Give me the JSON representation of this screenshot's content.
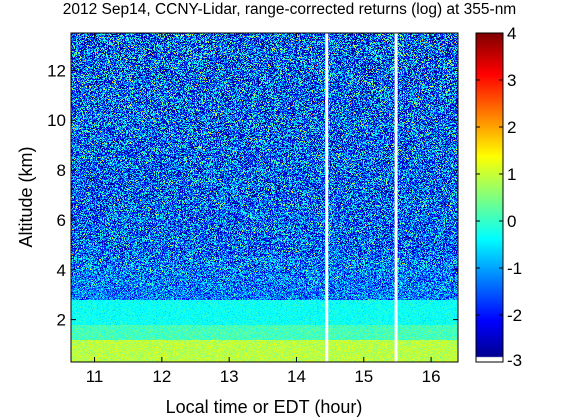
{
  "chart_data": {
    "type": "heatmap",
    "title": "2012 Sep14, CCNY-Lidar, range-corrected returns (log) at 355-nm",
    "xlabel": "Local time or EDT (hour)",
    "ylabel": "Altitude (km)",
    "xlim": [
      10.65,
      16.4
    ],
    "ylim": [
      0.3,
      13.5
    ],
    "x_ticks": [
      11,
      12,
      13,
      14,
      15,
      16
    ],
    "y_ticks": [
      2,
      4,
      6,
      8,
      10,
      12
    ],
    "colorbar": {
      "range": [
        -3,
        4
      ],
      "ticks": [
        -3,
        -2,
        -1,
        0,
        1,
        2,
        3,
        4
      ],
      "colormap": "jet"
    },
    "data_gaps_hours": [
      14.45,
      15.48
    ],
    "layers": [
      {
        "altitude_km": [
          0.3,
          1.2
        ],
        "level": 0.9
      },
      {
        "altitude_km": [
          1.2,
          1.8
        ],
        "level": 0.1
      },
      {
        "altitude_km": [
          1.8,
          2.8
        ],
        "level": -0.3
      },
      {
        "altitude_km": [
          2.8,
          4.5
        ],
        "level": -1.3
      },
      {
        "altitude_km": [
          4.5,
          13.5
        ],
        "level": -1.5
      }
    ]
  }
}
